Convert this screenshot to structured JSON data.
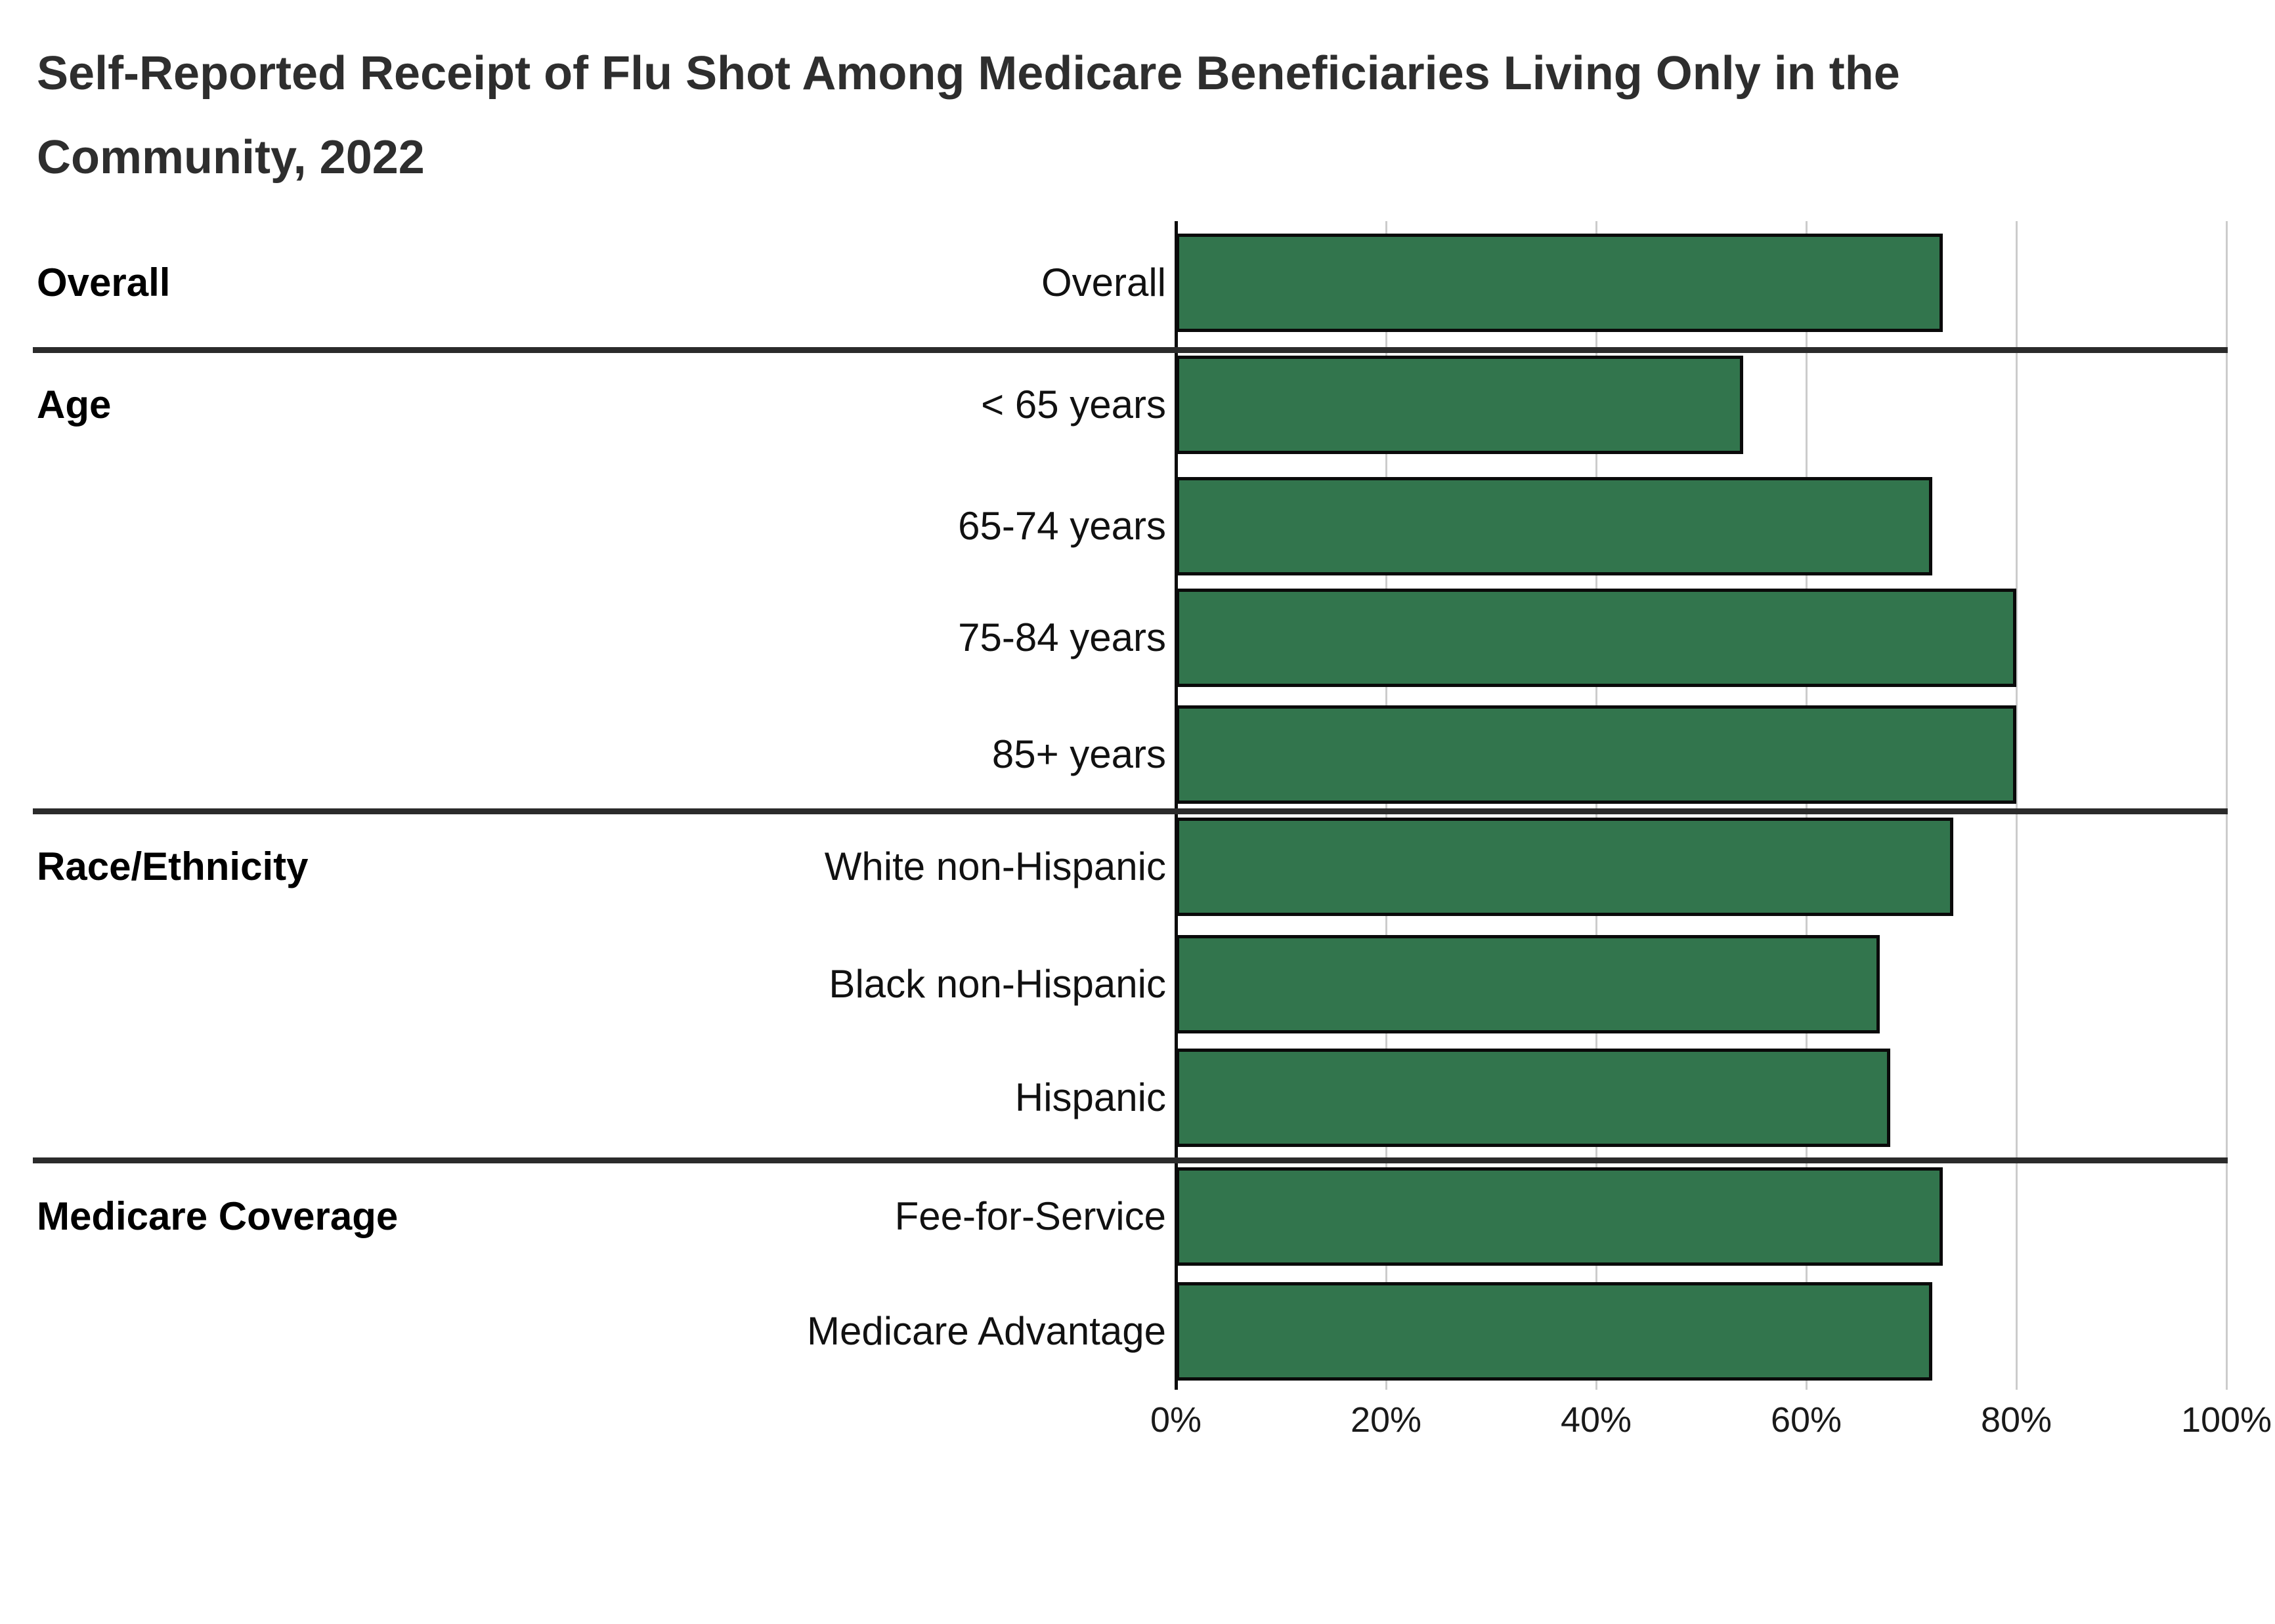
{
  "title": "Self-Reported Receipt of Flu Shot Among Medicare Beneficiaries Living Only in the\nCommunity, 2022",
  "chart_data": {
    "type": "bar",
    "orientation": "horizontal",
    "title": "Self-Reported Receipt of Flu Shot Among Medicare Beneficiaries Living Only in the Community, 2022",
    "xlabel": "",
    "ylabel": "",
    "unit": "percent",
    "xlim": [
      0,
      100
    ],
    "x_ticks": [
      "0%",
      "20%",
      "40%",
      "60%",
      "80%",
      "100%"
    ],
    "x_tick_values": [
      0,
      20,
      40,
      60,
      80,
      100
    ],
    "grid": "vertical gridlines at each x tick",
    "legend": "none",
    "bar_color": "#32754d",
    "bar_border_color": "#0a0a0a",
    "groups": [
      {
        "label": "Overall",
        "rows": [
          {
            "label": "Overall",
            "value": 73
          }
        ]
      },
      {
        "label": "Age",
        "rows": [
          {
            "label": "< 65 years",
            "value": 54
          },
          {
            "label": "65-74 years",
            "value": 72
          },
          {
            "label": "75-84 years",
            "value": 80
          },
          {
            "label": "85+ years",
            "value": 80
          }
        ]
      },
      {
        "label": "Race/Ethnicity",
        "rows": [
          {
            "label": "White non-Hispanic",
            "value": 74
          },
          {
            "label": "Black non-Hispanic",
            "value": 67
          },
          {
            "label": "Hispanic",
            "value": 68
          }
        ]
      },
      {
        "label": "Medicare Coverage",
        "rows": [
          {
            "label": "Fee-for-Service",
            "value": 73
          },
          {
            "label": "Medicare Advantage",
            "value": 72
          }
        ]
      }
    ]
  }
}
